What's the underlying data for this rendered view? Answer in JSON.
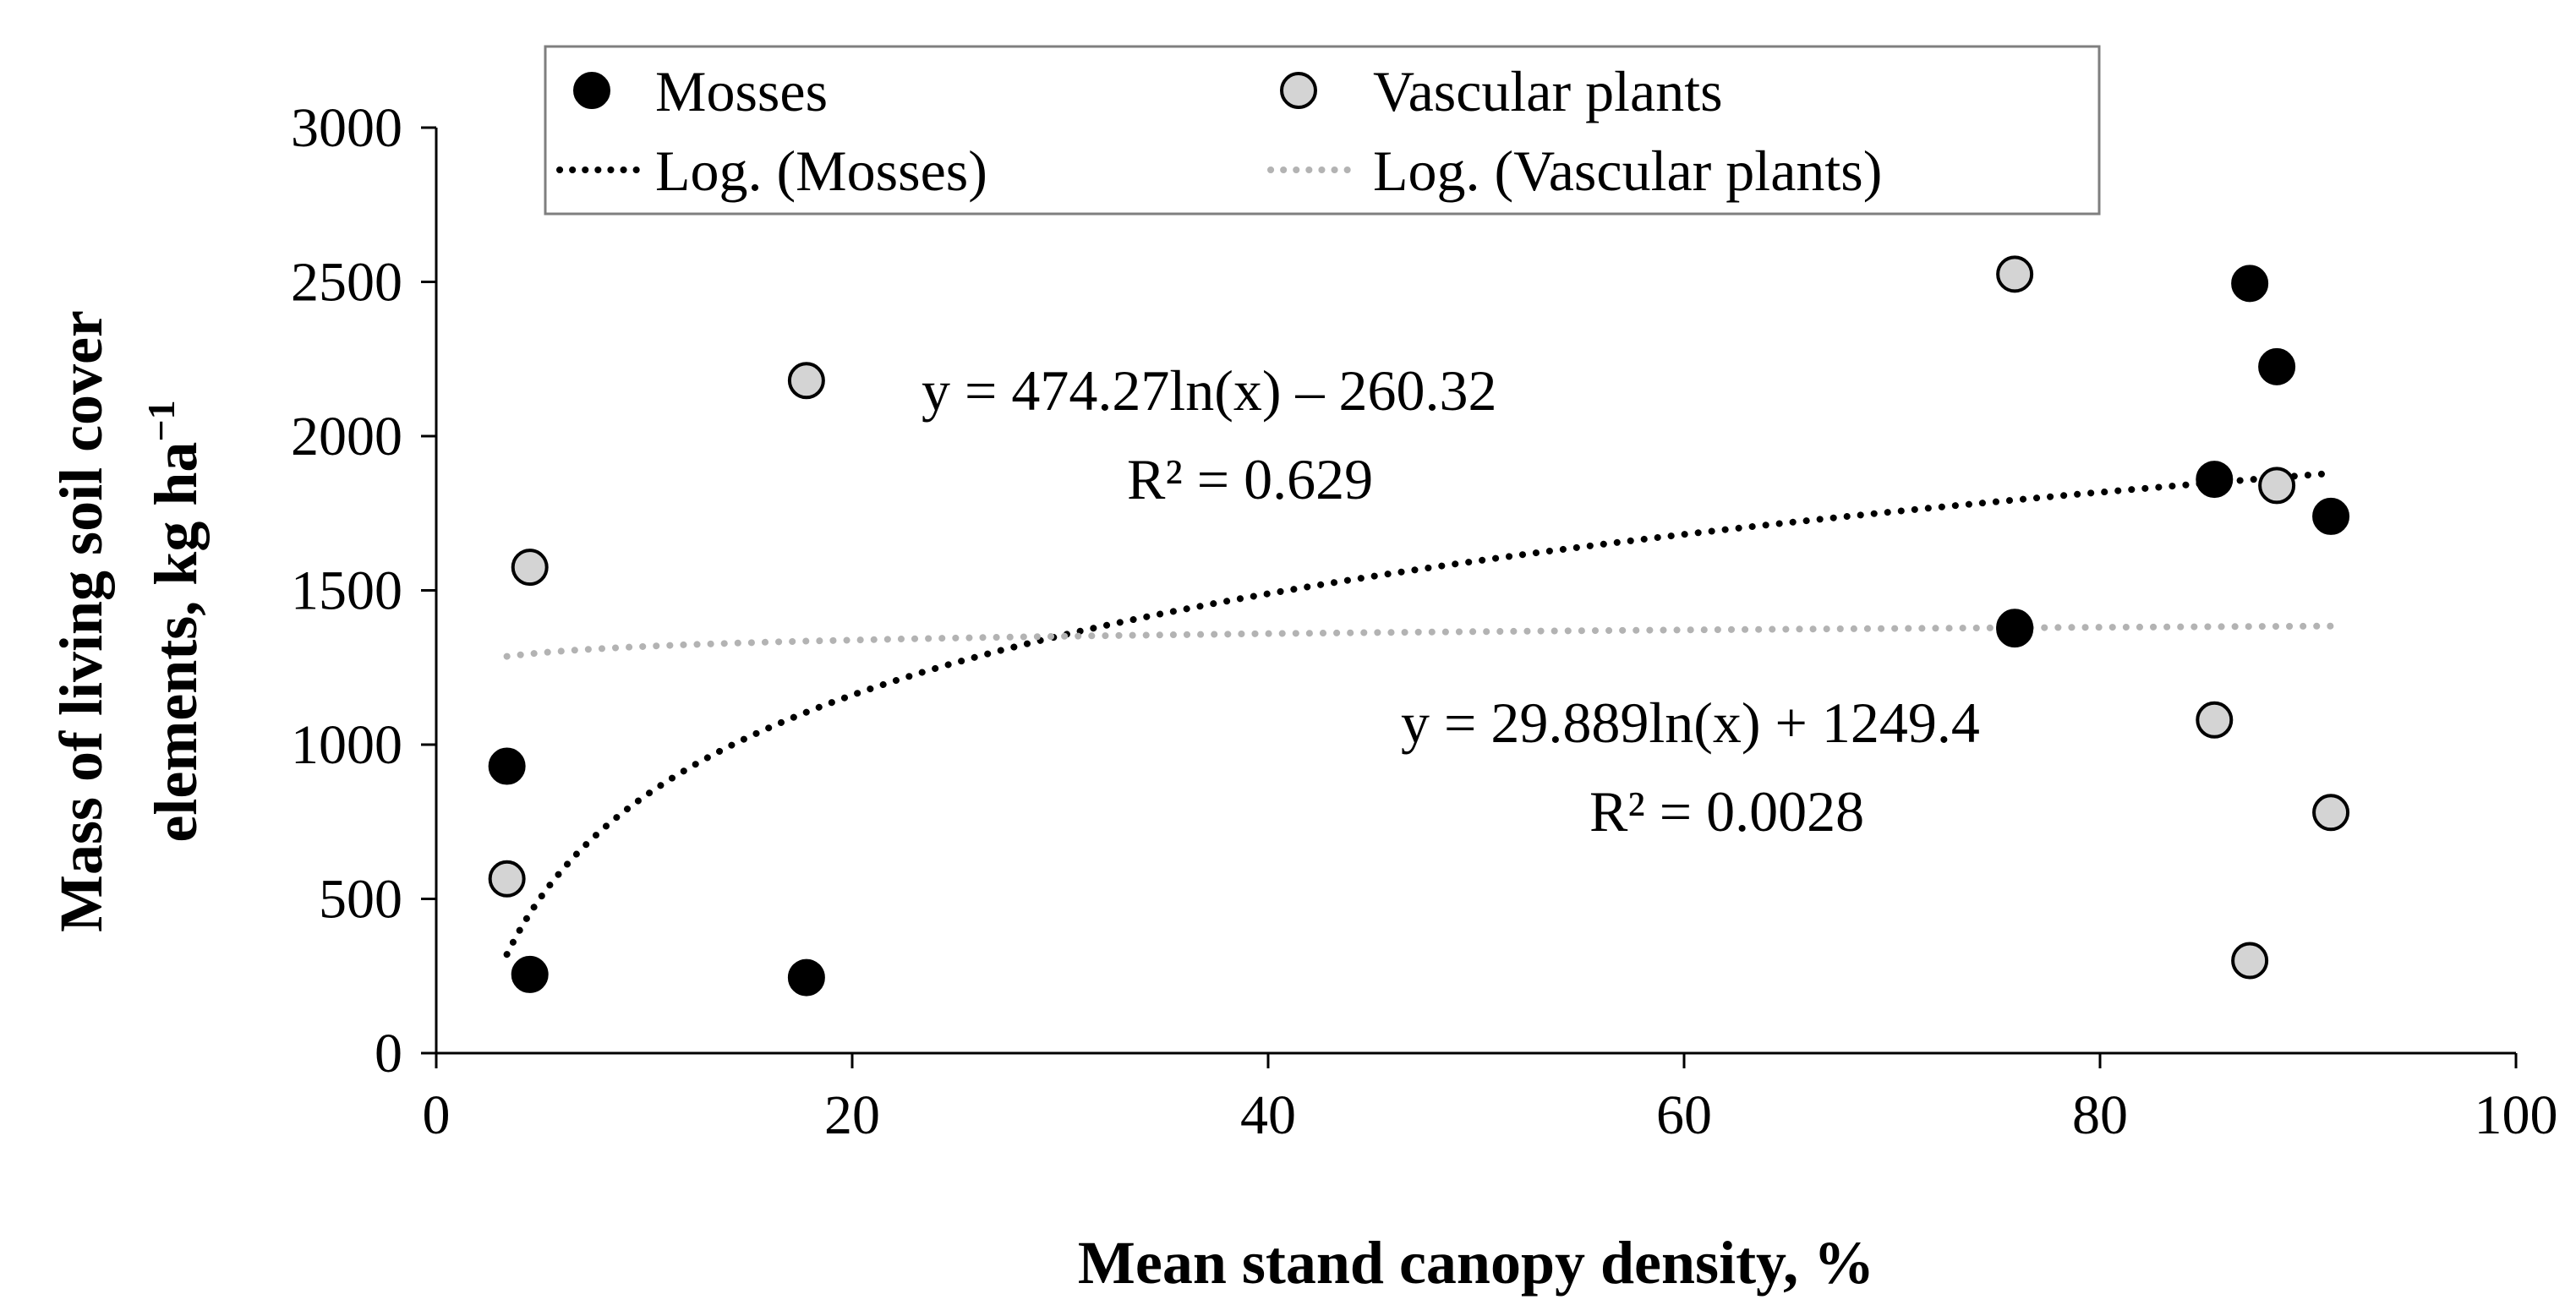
{
  "chart_data": {
    "type": "scatter",
    "title": "",
    "xlabel": "Mean stand canopy density, %",
    "ylabel_line1": "Mass of living soil cover",
    "ylabel_line2": "elements, kg ha",
    "ylabel_sup": "−1",
    "xlim": [
      0,
      100
    ],
    "ylim": [
      0,
      3000
    ],
    "xticks": [
      "0",
      "20",
      "40",
      "60",
      "80",
      "100"
    ],
    "yticks": [
      "0",
      "500",
      "1000",
      "1500",
      "2000",
      "2500",
      "3000"
    ],
    "grid": false,
    "legend_position": "top",
    "series": [
      {
        "name": "Mosses",
        "marker": "circle",
        "fill": "#000000",
        "stroke": "#000000",
        "points": [
          {
            "x": 3.4,
            "y": 930
          },
          {
            "x": 4.5,
            "y": 255
          },
          {
            "x": 17.8,
            "y": 245
          },
          {
            "x": 75.9,
            "y": 1375
          },
          {
            "x": 85.5,
            "y": 1860
          },
          {
            "x": 87.2,
            "y": 2495
          },
          {
            "x": 88.5,
            "y": 2225
          },
          {
            "x": 91.1,
            "y": 1740
          }
        ]
      },
      {
        "name": "Vascular plants",
        "marker": "circle",
        "fill": "#d4d4d4",
        "stroke": "#000000",
        "points": [
          {
            "x": 3.4,
            "y": 565
          },
          {
            "x": 4.5,
            "y": 1575
          },
          {
            "x": 17.8,
            "y": 2180
          },
          {
            "x": 75.9,
            "y": 2525
          },
          {
            "x": 75.9,
            "y": 1380
          },
          {
            "x": 85.5,
            "y": 1080
          },
          {
            "x": 87.2,
            "y": 300
          },
          {
            "x": 88.5,
            "y": 1840
          },
          {
            "x": 91.1,
            "y": 780
          }
        ]
      }
    ],
    "trendlines": [
      {
        "name": "Log. (Mosses)",
        "kind": "log",
        "a": 474.27,
        "b": -260.32,
        "x_range": [
          3.4,
          91.1
        ],
        "color": "#000000",
        "equation": "y = 474.27ln(x) – 260.32",
        "r2": "R² = 0.629"
      },
      {
        "name": "Log. (Vascular plants)",
        "kind": "log",
        "a": 29.889,
        "b": 1249.4,
        "x_range": [
          3.4,
          91.1
        ],
        "color": "#b3b3b3",
        "equation": "y = 29.889ln(x) + 1249.4",
        "r2": "R² = 0.0028"
      }
    ]
  }
}
